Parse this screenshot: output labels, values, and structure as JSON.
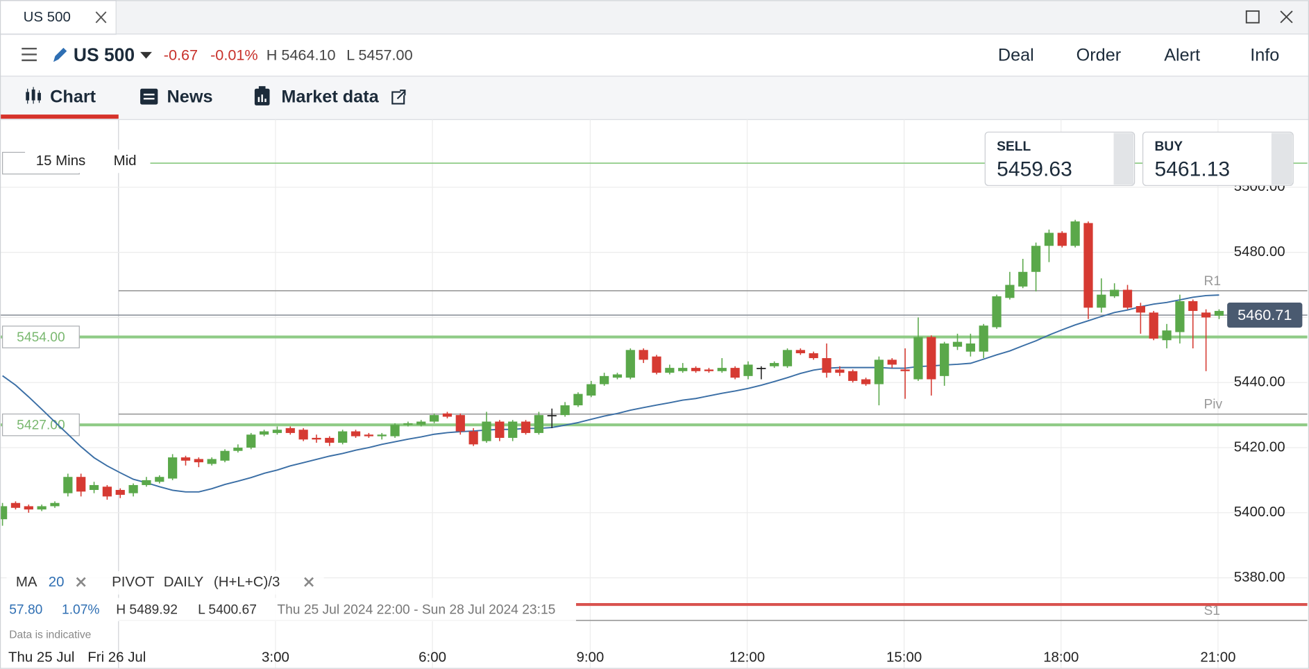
{
  "window": {
    "tab_title": "US 500"
  },
  "header": {
    "instrument": "US 500",
    "change": "-0.67",
    "change_pct": "-0.01%",
    "high": "H 5464.10",
    "low": "L 5457.00",
    "actions": [
      "Deal",
      "Order",
      "Alert",
      "Info"
    ]
  },
  "tabs": [
    "Chart",
    "News",
    "Market data"
  ],
  "quote": {
    "sell_label": "SELL",
    "sell": "5459.63",
    "buy_label": "BUY",
    "buy": "5461.13"
  },
  "chart_data": {
    "type": "candlestick",
    "interval": "15 Mins",
    "price_type": "Mid",
    "up_color": "#5aa84a",
    "down_color": "#d63a32",
    "grid": true,
    "x_labels": [
      "Thu 25 Jul",
      "Fri 26 Jul",
      "3:00",
      "6:00",
      "9:00",
      "12:00",
      "15:00",
      "18:00",
      "21:00"
    ],
    "ylim": [
      5352.3,
      5520.8
    ],
    "yticks": [
      {
        "value": 5380,
        "label": "5380.00"
      },
      {
        "value": 5400,
        "label": "5400.00"
      },
      {
        "value": 5420,
        "label": "5420.00"
      },
      {
        "value": 5440,
        "label": "5440.00"
      },
      {
        "value": 5460,
        "label": "5460.00"
      },
      {
        "value": 5480,
        "label": "5480.00"
      },
      {
        "value": 5500,
        "label": "5500.00"
      }
    ],
    "open": [
      5398,
      5403,
      5402,
      5401,
      5402,
      5406,
      5411,
      5407,
      5408,
      5407,
      5406,
      5408.5,
      5409.5,
      5410.5,
      5417,
      5416.5,
      5415,
      5416,
      5419,
      5420,
      5424,
      5424.5,
      5426,
      5425.5,
      5423,
      5423,
      5421.5,
      5425,
      5424,
      5423.5,
      5423.5,
      5427,
      5427,
      5428,
      5430.5,
      5430,
      5425,
      5422,
      5428,
      5423,
      5428,
      5424.5,
      5430,
      5430,
      5433,
      5436,
      5439.5,
      5441.5,
      5441.5,
      5450,
      5448,
      5443,
      5443.5,
      5444.5,
      5444,
      5443.5,
      5444.5,
      5442,
      5444.5,
      5445,
      5445,
      5450,
      5449,
      5447.5,
      5444,
      5443.5,
      5441,
      5439.5,
      5447,
      5444,
      5441,
      5454,
      5442,
      5451,
      5449.5,
      5449.5,
      5457,
      5466,
      5469.5,
      5474,
      5482,
      5486,
      5482,
      5489,
      5463,
      5466.5,
      5468.5,
      5463.5,
      5461.5,
      5453,
      5455.5,
      5465,
      5461.5,
      5460.5
    ],
    "high": [
      5403,
      5403.5,
      5402.5,
      5402.5,
      5403.5,
      5412,
      5412,
      5409.5,
      5408.5,
      5407.5,
      5409,
      5411,
      5411.5,
      5418,
      5417.5,
      5417,
      5417,
      5419.5,
      5421,
      5424.5,
      5425.5,
      5426.5,
      5426.5,
      5426,
      5424,
      5423.5,
      5425.5,
      5425.5,
      5424.5,
      5424.5,
      5427.5,
      5428,
      5428.5,
      5430.5,
      5431,
      5430.5,
      5426,
      5431,
      5428.5,
      5428.5,
      5428.5,
      5431,
      5432,
      5434,
      5437,
      5440.5,
      5443,
      5443,
      5450.5,
      5450.5,
      5448.5,
      5445.5,
      5446,
      5445,
      5444.5,
      5447.5,
      5445,
      5446.5,
      5445,
      5446.5,
      5450.5,
      5450.5,
      5449.5,
      5452,
      5445,
      5444,
      5441.5,
      5448,
      5447.5,
      5450.5,
      5460,
      5454.5,
      5452.5,
      5455,
      5455,
      5458,
      5467,
      5474,
      5478,
      5483,
      5487,
      5486.5,
      5490,
      5489.5,
      5472,
      5470.5,
      5470,
      5464.5,
      5462,
      5458,
      5467,
      5465.5,
      5462.5,
      5462.5
    ],
    "low": [
      5396,
      5401,
      5400,
      5400.5,
      5401.5,
      5405,
      5405,
      5406,
      5404,
      5404.5,
      5405,
      5408,
      5409,
      5410,
      5414.5,
      5414,
      5414.5,
      5415.5,
      5418.5,
      5419.5,
      5423.5,
      5424,
      5424,
      5422,
      5421.5,
      5420.5,
      5421,
      5423,
      5423,
      5422.5,
      5423,
      5426.5,
      5426.5,
      5427.5,
      5429,
      5424,
      5420.5,
      5421.5,
      5422,
      5422,
      5424,
      5424,
      5426,
      5429.5,
      5432.5,
      5435.5,
      5439,
      5441,
      5441,
      5446,
      5442.5,
      5442.5,
      5443,
      5443,
      5443,
      5443,
      5441,
      5441,
      5441,
      5444.5,
      5444.5,
      5448.5,
      5447,
      5441.5,
      5442,
      5440,
      5439,
      5433,
      5444.5,
      5435,
      5440.5,
      5436,
      5439,
      5450,
      5448,
      5447.5,
      5456.5,
      5465.5,
      5469,
      5468,
      5477,
      5481.5,
      5481.5,
      5459.5,
      5461.5,
      5466,
      5462.5,
      5455,
      5453,
      5450.5,
      5452,
      5450.5,
      5443.5,
      5459.5
    ],
    "close": [
      5402,
      5401.5,
      5401,
      5402,
      5403,
      5411,
      5406.5,
      5408.5,
      5405,
      5405.5,
      5408.5,
      5410,
      5411,
      5417,
      5416,
      5415.5,
      5416.5,
      5419,
      5420,
      5424,
      5425,
      5425.5,
      5424.5,
      5422.5,
      5422.5,
      5421.5,
      5425,
      5423.5,
      5423.5,
      5424,
      5427,
      5427.5,
      5428,
      5430,
      5429.5,
      5425,
      5421,
      5428,
      5423,
      5428,
      5424.5,
      5430,
      5430,
      5433,
      5436.5,
      5439.5,
      5442,
      5442.5,
      5450,
      5447,
      5443,
      5444.5,
      5444.5,
      5443.5,
      5443.5,
      5444.5,
      5441.5,
      5445.5,
      5444.5,
      5446,
      5450,
      5449,
      5447.5,
      5443,
      5443,
      5440.5,
      5439.5,
      5447,
      5445.5,
      5443.5,
      5454,
      5441,
      5452,
      5452.5,
      5452,
      5457.5,
      5466.5,
      5470,
      5474,
      5482,
      5486,
      5482,
      5489.5,
      5463,
      5467,
      5468.5,
      5463,
      5461.5,
      5453.5,
      5456,
      5465,
      5462,
      5460,
      5462
    ],
    "ma": {
      "name": "MA",
      "period": 20,
      "color": "#3a6ea5",
      "values": [
        5442.1,
        5439.2,
        5435.6,
        5431.8,
        5427.9,
        5424.1,
        5420.3,
        5416.9,
        5414.4,
        5412.3,
        5410.3,
        5409.2,
        5408,
        5406.9,
        5406.4,
        5406.4,
        5407.4,
        5408.7,
        5409.7,
        5410.8,
        5412.1,
        5413.1,
        5414.4,
        5415.4,
        5416.4,
        5417.4,
        5418.2,
        5419.2,
        5420,
        5421,
        5421.8,
        5422.6,
        5423.3,
        5424.1,
        5424.6,
        5424.9,
        5425.1,
        5425.4,
        5425.6,
        5425.6,
        5425.9,
        5425.9,
        5426.2,
        5426.9,
        5427.7,
        5428.7,
        5429.7,
        5430.5,
        5431.5,
        5432.3,
        5433.1,
        5433.8,
        5434.6,
        5435.1,
        5435.9,
        5436.7,
        5437.4,
        5438.2,
        5439.2,
        5440.3,
        5441.5,
        5442.8,
        5443.8,
        5444.4,
        5444.6,
        5444.6,
        5444.6,
        5444.6,
        5444.4,
        5444.4,
        5444.9,
        5445.1,
        5445.4,
        5445.6,
        5445.9,
        5447.2,
        5448.5,
        5449.7,
        5451.3,
        5452.8,
        5454.6,
        5456.2,
        5457.7,
        5459,
        5460.3,
        5461.5,
        5462.3,
        5463.3,
        5464.1,
        5464.6,
        5465.4,
        5466.2,
        5466.7,
        5466.9
      ]
    },
    "pivot": {
      "name": "PIVOT",
      "period": "DAILY",
      "formula": "(H+L+C)/3",
      "color": "#9a9a9a",
      "levels": [
        {
          "name": "R1",
          "value": 5468.2
        },
        {
          "name": "Piv",
          "value": 5430.3
        },
        {
          "name": "S1",
          "value": 5366.9
        }
      ]
    },
    "levels": [
      {
        "value": 5507.4,
        "color": "#8fcb86"
      },
      {
        "value": 5454,
        "label": "5454.00",
        "color": "#8fcb86"
      },
      {
        "value": 5427,
        "label": "5427.00",
        "color": "#8fcb86"
      },
      {
        "value": 5371.8,
        "color": "#d9534f"
      }
    ],
    "current_price": 5460.71,
    "summary": {
      "change": "57.80",
      "change_pct": "1.07%",
      "high": "H 5489.92",
      "low": "L 5400.67",
      "range": "Thu 25 Jul 2024 22:00 - Sun 28 Jul 2024 23:15",
      "note": "Data is indicative"
    }
  }
}
